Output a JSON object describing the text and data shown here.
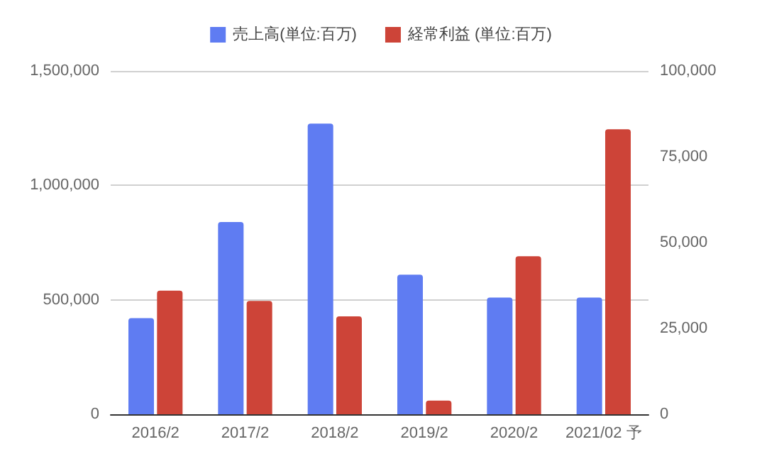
{
  "chart_data": {
    "type": "bar",
    "categories": [
      "2016/2",
      "2017/2",
      "2018/2",
      "2019/2",
      "2020/2",
      "2021/02 予"
    ],
    "series": [
      {
        "name": "売上高(単位:百万)",
        "color": "#5f7cf2",
        "values": [
          420000,
          840000,
          1270000,
          610000,
          510000,
          510000
        ]
      },
      {
        "name": "経常利益 (単位:百万)",
        "color": "#cd4438",
        "axis": "y2",
        "values": [
          36000,
          33000,
          28500,
          4000,
          46000,
          83000
        ]
      }
    ],
    "ylim": [
      0,
      1500000
    ],
    "yticks": [
      0,
      {
        "value": 500000,
        "label": "500,000"
      },
      {
        "value": 1000000,
        "label": "1,000,000"
      },
      {
        "value": 1500000,
        "label": "1,500,000"
      }
    ],
    "y2lim": [
      0,
      100000
    ],
    "y2ticks": [
      0,
      {
        "value": 25000,
        "label": "25,000"
      },
      {
        "value": 50000,
        "label": "50,000"
      },
      {
        "value": 75000,
        "label": "75,000"
      },
      {
        "value": 100000,
        "label": "100,000"
      }
    ],
    "grid": "y",
    "legend": "top"
  }
}
